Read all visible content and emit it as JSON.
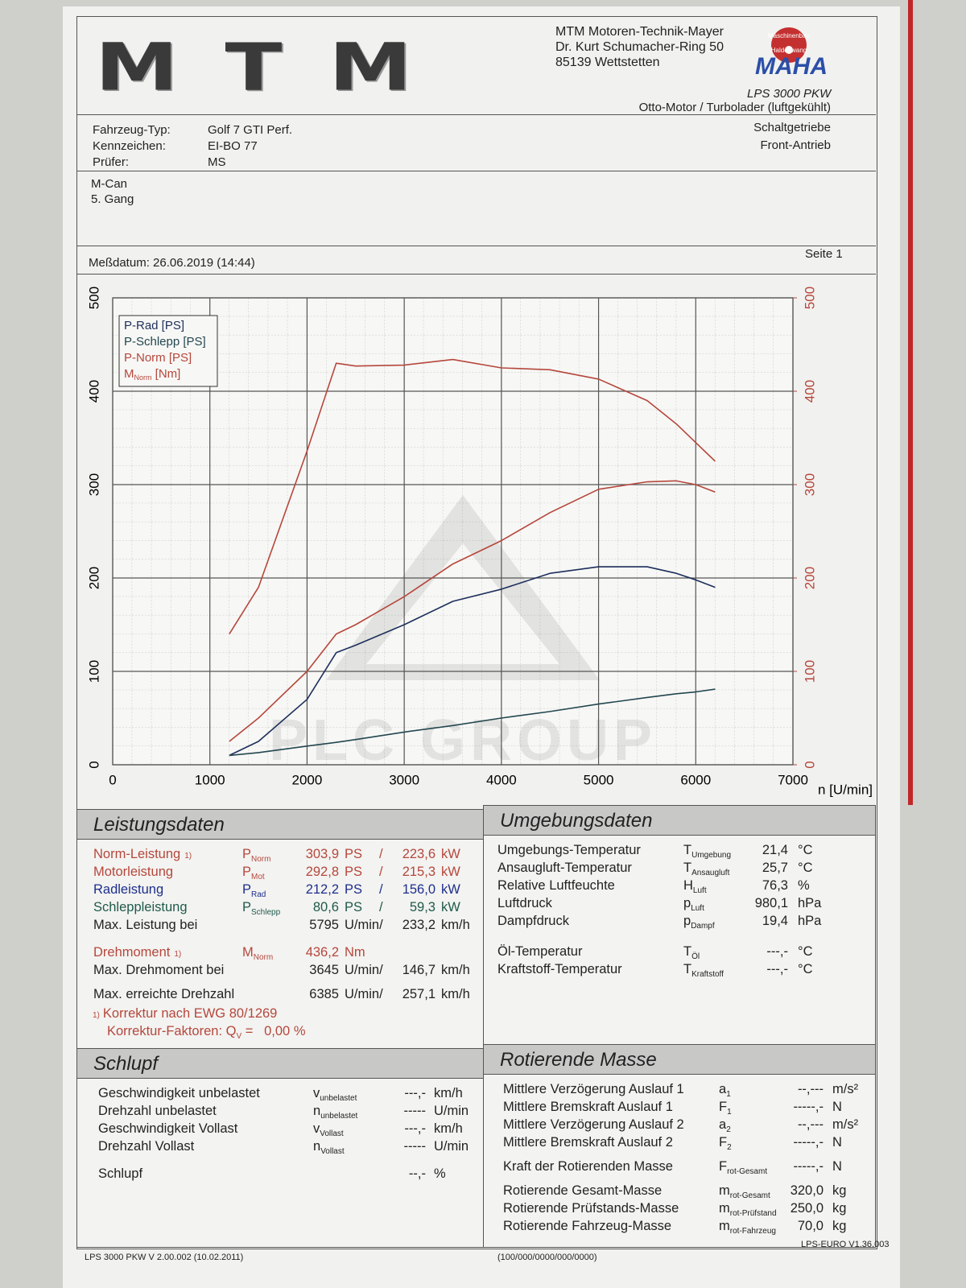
{
  "header": {
    "logo": "MTM",
    "company": [
      "MTM Motoren-Technik-Mayer",
      "Dr. Kurt Schumacher-Ring 50",
      "85139 Wettstetten"
    ],
    "maha_ring": [
      "Maschinenbau",
      "Haldenwang"
    ],
    "maha": "MAHA",
    "model": "LPS 3000 PKW",
    "engine": [
      "Otto-Motor / Turbolader (luftgekühlt)",
      "Schaltgetriebe",
      "Front-Antrieb"
    ]
  },
  "vehicle": {
    "labels": [
      "Fahrzeug-Typ:",
      "Kennzeichen:",
      "Prüfer:"
    ],
    "values": [
      "Golf 7 GTI Perf.",
      "EI-BO 77",
      "MS"
    ]
  },
  "notes": [
    "M-Can",
    "5. Gang"
  ],
  "date": "Meßdatum: 26.06.2019 (14:44)",
  "page": "Seite 1",
  "watermark": "PLC GROUP",
  "chart_data": {
    "type": "line",
    "x_label": "n [U/min]",
    "x": [
      1200,
      1500,
      2000,
      2300,
      2500,
      3000,
      3500,
      4000,
      4500,
      5000,
      5500,
      5800,
      6000,
      6200
    ],
    "xlim": [
      0,
      7000
    ],
    "xticks": [
      0,
      1000,
      2000,
      3000,
      4000,
      5000,
      6000,
      7000
    ],
    "ylim": [
      0,
      500
    ],
    "yticks": [
      0,
      100,
      200,
      300,
      400,
      500
    ],
    "y2lim": [
      0,
      500
    ],
    "y2ticks": [
      0,
      100,
      200,
      300,
      400,
      500
    ],
    "y2_color": "#b5473c",
    "grid": true,
    "legend": "top-left",
    "series": [
      {
        "name": "P-Rad [PS]",
        "color": "#1d2f5c",
        "values": [
          10,
          25,
          70,
          120,
          128,
          150,
          175,
          188,
          205,
          212,
          212,
          205,
          198,
          190
        ]
      },
      {
        "name": "P-Schlepp [PS]",
        "color": "#23474f",
        "values": [
          10,
          13,
          20,
          24,
          27,
          35,
          42,
          50,
          57,
          65,
          72,
          76,
          78,
          81
        ]
      },
      {
        "name": "P-Norm [PS]",
        "color": "#b5473c",
        "values": [
          25,
          50,
          100,
          140,
          150,
          180,
          215,
          240,
          270,
          295,
          303,
          304,
          300,
          292
        ]
      },
      {
        "name": "M",
        "name_sub": "Norm",
        "name_suffix": " [Nm]",
        "color": "#b5473c",
        "axis": "y2",
        "values": [
          140,
          190,
          336,
          430,
          427,
          428,
          434,
          425,
          423,
          413,
          390,
          365,
          345,
          325
        ]
      }
    ]
  },
  "sections": [
    {
      "title": "Leistungsdaten",
      "rows": [
        {
          "label": "Norm-Leistung",
          "note": "1)",
          "sym": "P",
          "sub": "Norm",
          "v1": "303,9",
          "u1": "PS",
          "sep": "/",
          "v2": "223,6",
          "u2": "kW",
          "color": "#b5473c"
        },
        {
          "label": "Motorleistung",
          "sym": "P",
          "sub": "Mot",
          "v1": "292,8",
          "u1": "PS",
          "sep": "/",
          "v2": "215,3",
          "u2": "kW",
          "color": "#b5473c"
        },
        {
          "label": "Radleistung",
          "sym": "P",
          "sub": "Rad",
          "v1": "212,2",
          "u1": "PS",
          "sep": "/",
          "v2": "156,0",
          "u2": "kW",
          "color": "#1d2f8c"
        },
        {
          "label": "Schleppleistung",
          "sym": "P",
          "sub": "Schlepp",
          "v1": "80,6",
          "u1": "PS",
          "sep": "/",
          "v2": "59,3",
          "u2": "kW",
          "color": "#1f5a4a"
        },
        {
          "label": "Max. Leistung bei",
          "v1": "5795",
          "u1": "U/min/",
          "v2": "233,2",
          "u2": "km/h"
        },
        {
          "label": "Drehmoment",
          "note": "1)",
          "sym": "M",
          "sub": "Norm",
          "v1": "436,2",
          "u1": "Nm",
          "color": "#b5473c"
        },
        {
          "label": "Max. Drehmoment bei",
          "v1": "3645",
          "u1": "U/min/",
          "v2": "146,7",
          "u2": "km/h"
        },
        {
          "label": "Max. erreichte Drehzahl",
          "v1": "6385",
          "u1": "U/min/",
          "v2": "257,1",
          "u2": "km/h"
        }
      ]
    },
    {
      "title": "Umgebungsdaten",
      "rows": [
        {
          "label": "Umgebungs-Temperatur",
          "sym": "T",
          "sub": "Umgebung",
          "v1": "21,4",
          "u1": "°C"
        },
        {
          "label": "Ansaugluft-Temperatur",
          "sym": "T",
          "sub": "Ansaugluft",
          "v1": "25,7",
          "u1": "°C"
        },
        {
          "label": "Relative Luftfeuchte",
          "sym": "H",
          "sub": "Luft",
          "v1": "76,3",
          "u1": "%"
        },
        {
          "label": "Luftdruck",
          "sym": "p",
          "sub": "Luft",
          "v1": "980,1",
          "u1": "hPa"
        },
        {
          "label": "Dampfdruck",
          "sym": "p",
          "sub": "Dampf",
          "v1": "19,4",
          "u1": "hPa"
        },
        {
          "label": "Öl-Temperatur",
          "sym": "T",
          "sub": "Öl",
          "v1": "---,-",
          "u1": "°C"
        },
        {
          "label": "Kraftstoff-Temperatur",
          "sym": "T",
          "sub": "Kraftstoff",
          "v1": "---,-",
          "u1": "°C"
        }
      ]
    },
    {
      "title": "Schlupf",
      "rows": [
        {
          "label": "Geschwindigkeit unbelastet",
          "sym": "v",
          "sub": "unbelastet",
          "v1": "---,-",
          "u1": "km/h"
        },
        {
          "label": "Drehzahl unbelastet",
          "sym": "n",
          "sub": "unbelastet",
          "v1": "-----",
          "u1": "U/min"
        },
        {
          "label": "Geschwindigkeit Vollast",
          "sym": "v",
          "sub": "Vollast",
          "v1": "---,-",
          "u1": "km/h"
        },
        {
          "label": "Drehzahl Vollast",
          "sym": "n",
          "sub": "Vollast",
          "v1": "-----",
          "u1": "U/min"
        },
        {
          "label": "Schlupf",
          "v1": "--,-",
          "u1": "%"
        }
      ]
    },
    {
      "title": "Rotierende Masse",
      "rows": [
        {
          "label": "Mittlere Verzögerung Auslauf 1",
          "sym": "a",
          "sub": "1",
          "v1": "--,---",
          "u1": "m/s²"
        },
        {
          "label": "Mittlere Bremskraft Auslauf 1",
          "sym": "F",
          "sub": "1",
          "v1": "-----,-",
          "u1": "N"
        },
        {
          "label": "Mittlere Verzögerung Auslauf 2",
          "sym": "a",
          "sub": "2",
          "v1": "--,---",
          "u1": "m/s²"
        },
        {
          "label": "Mittlere Bremskraft Auslauf 2",
          "sym": "F",
          "sub": "2",
          "v1": "-----,-",
          "u1": "N"
        },
        {
          "label": "Kraft der Rotierenden Masse",
          "sym": "F",
          "sub": "rot-Gesamt",
          "v1": "-----,-",
          "u1": "N"
        },
        {
          "label": "Rotierende Gesamt-Masse",
          "sym": "m",
          "sub": "rot-Gesamt",
          "v1": "320,0",
          "u1": "kg"
        },
        {
          "label": "Rotierende Prüfstands-Masse",
          "sym": "m",
          "sub": "rot-Prüfstand",
          "v1": "250,0",
          "u1": "kg"
        },
        {
          "label": "Rotierende Fahrzeug-Masse",
          "sym": "m",
          "sub": "rot-Fahrzeug",
          "v1": "70,0",
          "u1": "kg"
        }
      ]
    }
  ],
  "footnote": {
    "note": "1)",
    "text": "Korrektur nach EWG 80/1269",
    "factor_label": "Korrektur-Faktoren: Q",
    "factor_sub": "V",
    "factor_value": "=   0,00 %"
  },
  "footer": [
    "LPS 3000 PKW V 2.00.002 (10.02.2011)",
    "(100/000/0000/000/0000)",
    "LPS-EURO V1.36.003"
  ]
}
